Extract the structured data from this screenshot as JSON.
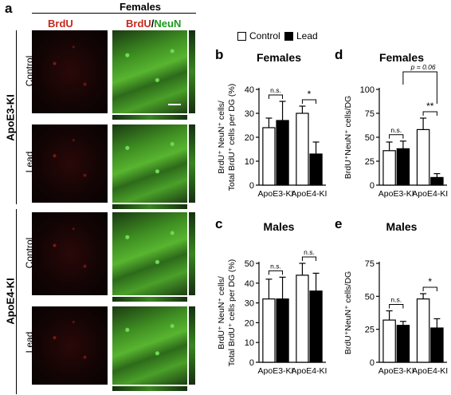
{
  "panel_labels": {
    "a": "a",
    "b": "b",
    "c": "c",
    "d": "d",
    "e": "e"
  },
  "panel_a": {
    "header": "Females",
    "col_brdu": "BrdU",
    "col_merge_brdu": "BrdU",
    "col_merge_sep": "/",
    "col_merge_neun": "NeuN",
    "groups": [
      {
        "label": "ApoE3-KI",
        "rows": [
          "Control",
          "Lead"
        ]
      },
      {
        "label": "ApoE4-KI",
        "rows": [
          "Control",
          "Lead"
        ]
      }
    ]
  },
  "legend": {
    "control_label": "Control",
    "lead_label": "Lead"
  },
  "colors": {
    "control_fill": "#ffffff",
    "lead_fill": "#000000",
    "stroke": "#000000"
  },
  "chart_data": [
    {
      "panel": "b",
      "type": "bar",
      "title": "Females",
      "ylabel_line1": "BrdU⁺ NeuN⁺ cells/",
      "ylabel_line2": "Total BrdU⁺ cells per DG (%)",
      "categories": [
        "ApoE3-KI",
        "ApoE4-KI"
      ],
      "ylim": [
        0,
        40
      ],
      "yticks": [
        0,
        10,
        20,
        30,
        40
      ],
      "series": [
        {
          "name": "Control",
          "values": [
            24,
            30
          ],
          "errors": [
            4,
            3
          ]
        },
        {
          "name": "Lead",
          "values": [
            27,
            13
          ],
          "errors": [
            8,
            5
          ]
        }
      ],
      "annotations": [
        {
          "group": 0,
          "text": "n.s."
        },
        {
          "group": 1,
          "text": "*"
        }
      ]
    },
    {
      "panel": "c",
      "type": "bar",
      "title": "Males",
      "ylabel_line1": "BrdU⁺ NeuN⁺ cells/",
      "ylabel_line2": "Total BrdU⁺ cells per DG (%)",
      "categories": [
        "ApoE3-KI",
        "ApoE4-KI"
      ],
      "ylim": [
        0,
        50
      ],
      "yticks": [
        0,
        10,
        20,
        30,
        40,
        50
      ],
      "series": [
        {
          "name": "Control",
          "values": [
            32,
            44
          ],
          "errors": [
            10,
            6
          ]
        },
        {
          "name": "Lead",
          "values": [
            32,
            36
          ],
          "errors": [
            11,
            9
          ]
        }
      ],
      "annotations": [
        {
          "group": 0,
          "text": "n.s."
        },
        {
          "group": 1,
          "text": "n.s."
        }
      ]
    },
    {
      "panel": "d",
      "type": "bar",
      "title": "Females",
      "ylabel_line1": "BrdU⁺NeuN⁺ cells/DG",
      "ylabel_line2": "",
      "categories": [
        "ApoE3-KI",
        "ApoE4-KI"
      ],
      "ylim": [
        0,
        100
      ],
      "yticks": [
        0,
        25,
        50,
        75,
        100
      ],
      "series": [
        {
          "name": "Control",
          "values": [
            36,
            58
          ],
          "errors": [
            9,
            12
          ]
        },
        {
          "name": "Lead",
          "values": [
            38,
            8
          ],
          "errors": [
            8,
            4
          ]
        }
      ],
      "annotations": [
        {
          "group": 0,
          "text": "n.s."
        },
        {
          "group": 1,
          "text": "**"
        }
      ],
      "extra_annotation": "p = 0.06"
    },
    {
      "panel": "e",
      "type": "bar",
      "title": "Males",
      "ylabel_line1": "BrdU⁺NeuN⁺ cells/DG",
      "ylabel_line2": "",
      "categories": [
        "ApoE3-KI",
        "ApoE4-KI"
      ],
      "ylim": [
        0,
        75
      ],
      "yticks": [
        0,
        25,
        50,
        75
      ],
      "series": [
        {
          "name": "Control",
          "values": [
            32,
            48
          ],
          "errors": [
            7,
            4
          ]
        },
        {
          "name": "Lead",
          "values": [
            28,
            26
          ],
          "errors": [
            3,
            7
          ]
        }
      ],
      "annotations": [
        {
          "group": 0,
          "text": "n.s."
        },
        {
          "group": 1,
          "text": "*"
        }
      ]
    }
  ]
}
